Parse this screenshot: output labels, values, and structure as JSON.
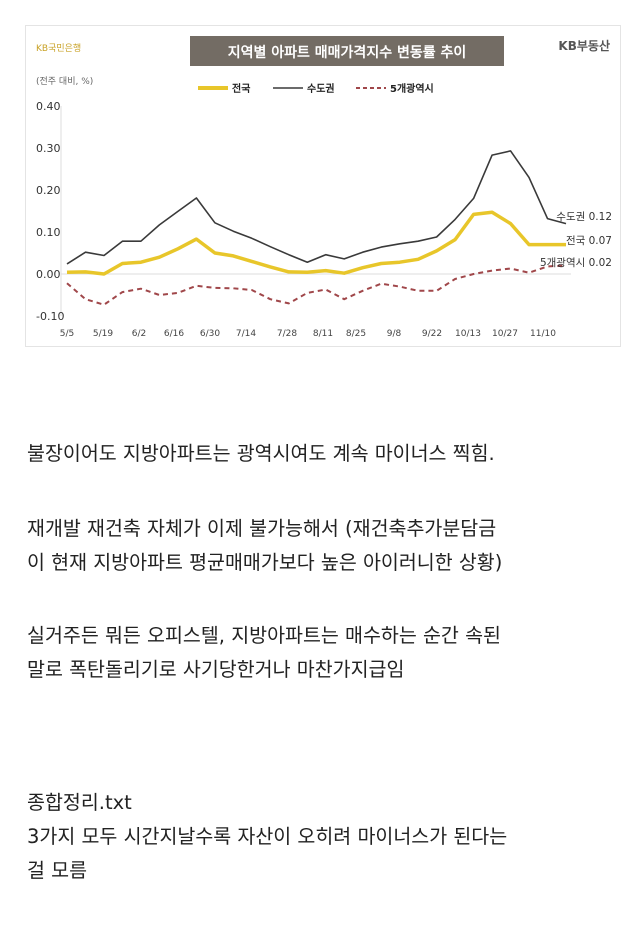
{
  "chart_data": {
    "type": "line",
    "title": "지역별 아파트 매매가격지수 변동률 추이",
    "brand_left": "KB국민은행",
    "brand_right": "KB부동산",
    "ylabel": "(전주 대비, %)",
    "ylim": [
      -0.1,
      0.4
    ],
    "yticks": [
      "0.40",
      "0.30",
      "0.20",
      "0.10",
      "0.00",
      "-0.10"
    ],
    "ytick_values": [
      0.4,
      0.3,
      0.2,
      0.1,
      0.0,
      -0.1
    ],
    "xtick_labels": [
      "5/5",
      "5/19",
      "6/2",
      "6/16",
      "6/30",
      "7/14",
      "7/28",
      "8/11",
      "8/25",
      "9/8",
      "9/22",
      "10/13",
      "10/27",
      "11/10"
    ],
    "legend_position": "top-center",
    "series": [
      {
        "name": "전국",
        "color": "#e8c62a",
        "style": "solid-thick",
        "end_label": "전국 0.07",
        "values": [
          0.004,
          0.005,
          0.0,
          0.025,
          0.028,
          0.04,
          0.06,
          0.083,
          0.05,
          0.043,
          0.03,
          0.017,
          0.005,
          0.004,
          0.008,
          0.002,
          0.015,
          0.025,
          0.028,
          0.035,
          0.055,
          0.082,
          0.142,
          0.147,
          0.12,
          0.07,
          0.07,
          0.07
        ]
      },
      {
        "name": "수도권",
        "color": "#3a3a3a",
        "style": "solid",
        "end_label": "수도권 0.12",
        "values": [
          0.024,
          0.052,
          0.044,
          0.078,
          0.078,
          0.117,
          0.149,
          0.181,
          0.122,
          0.102,
          0.085,
          0.065,
          0.046,
          0.028,
          0.046,
          0.036,
          0.052,
          0.064,
          0.072,
          0.078,
          0.088,
          0.13,
          0.18,
          0.283,
          0.293,
          0.23,
          0.132,
          0.12
        ]
      },
      {
        "name": "5개광역시",
        "color": "#a0474a",
        "style": "dashed",
        "end_label": "5개광역시 0.02",
        "values": [
          -0.022,
          -0.06,
          -0.073,
          -0.043,
          -0.035,
          -0.05,
          -0.045,
          -0.028,
          -0.033,
          -0.034,
          -0.038,
          -0.06,
          -0.07,
          -0.045,
          -0.037,
          -0.06,
          -0.04,
          -0.023,
          -0.03,
          -0.04,
          -0.04,
          -0.012,
          0.0,
          0.008,
          0.013,
          0.003,
          0.018,
          0.02
        ]
      }
    ]
  },
  "paragraphs": [
    [
      "불장이어도 지방아파트는 광역시여도 계속 마이너스 찍힘."
    ],
    [
      "재개발 재건축 자체가 이제 불가능해서 (재건축추가분담금",
      "이 현재 지방아파트 평균매매가보다 높은 아이러니한 상황)"
    ],
    [
      "실거주든 뭐든 오피스텔, 지방아파트는 매수하는 순간 속된",
      "말로 폭탄돌리기로 사기당한거나 마찬가지급임"
    ],
    [
      "종합정리.txt",
      "3가지 모두 시간지날수록 자산이 오히려 마이너스가 된다는",
      "걸 모름"
    ]
  ]
}
